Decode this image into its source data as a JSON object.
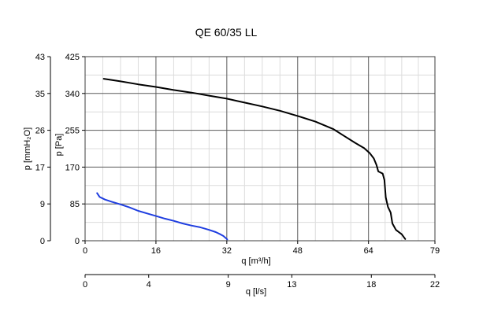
{
  "chart_data": {
    "type": "line",
    "title": "QE 60/35 LL",
    "ylabel_left_outer": "p [mmH₂O]",
    "ylabel_left_inner": "p [Pa]",
    "xlabel_primary": "q [m³/h]",
    "xlabel_secondary": "q [l/s]",
    "xlim": [
      0,
      79
    ],
    "ylim": [
      0,
      425
    ],
    "x_ticks": [
      "0",
      "16",
      "32",
      "48",
      "64",
      "79"
    ],
    "x_tick_values": [
      0,
      16,
      32,
      48,
      64,
      79
    ],
    "y_ticks": [
      "0",
      "85",
      "170",
      "255",
      "340",
      "425"
    ],
    "y_tick_values": [
      0,
      85,
      170,
      255,
      340,
      425
    ],
    "y2_ticks": [
      "0",
      "9",
      "17",
      "26",
      "35",
      "43"
    ],
    "x2_ticks": [
      "0",
      "4",
      "9",
      "13",
      "18",
      "22"
    ],
    "x2_tick_values": [
      0,
      4,
      9,
      13,
      18,
      22
    ],
    "x2_lim": [
      0,
      22
    ],
    "grid": true,
    "series": [
      {
        "color": "#000000",
        "x": [
          4.2,
          8,
          12,
          16,
          20,
          24,
          28,
          32,
          36,
          40,
          44,
          48,
          52,
          56,
          58.5,
          61,
          63,
          64.3,
          65.2,
          65.8,
          66.2,
          67.2,
          67.6,
          67.9,
          68.4,
          69,
          69.4,
          70.2,
          71.5,
          72.3
        ],
        "y": [
          374,
          368,
          361,
          355,
          348,
          342,
          335,
          328,
          319,
          310,
          300,
          288,
          275,
          258,
          242,
          226,
          214,
          202,
          190,
          175,
          160,
          155,
          140,
          100,
          78,
          65,
          40,
          25,
          15,
          4
        ]
      },
      {
        "color": "#1f3ee0",
        "x": [
          2.7,
          3.3,
          4.5,
          6,
          8,
          10,
          12,
          14,
          16,
          18,
          20,
          22,
          24,
          26,
          28,
          29.5,
          30.5,
          31.2,
          31.8,
          32.1
        ],
        "y": [
          110,
          101,
          95,
          90,
          84,
          77,
          69,
          63,
          57,
          51,
          46,
          40,
          35,
          31,
          25,
          20,
          15,
          11,
          6,
          3
        ]
      }
    ]
  }
}
